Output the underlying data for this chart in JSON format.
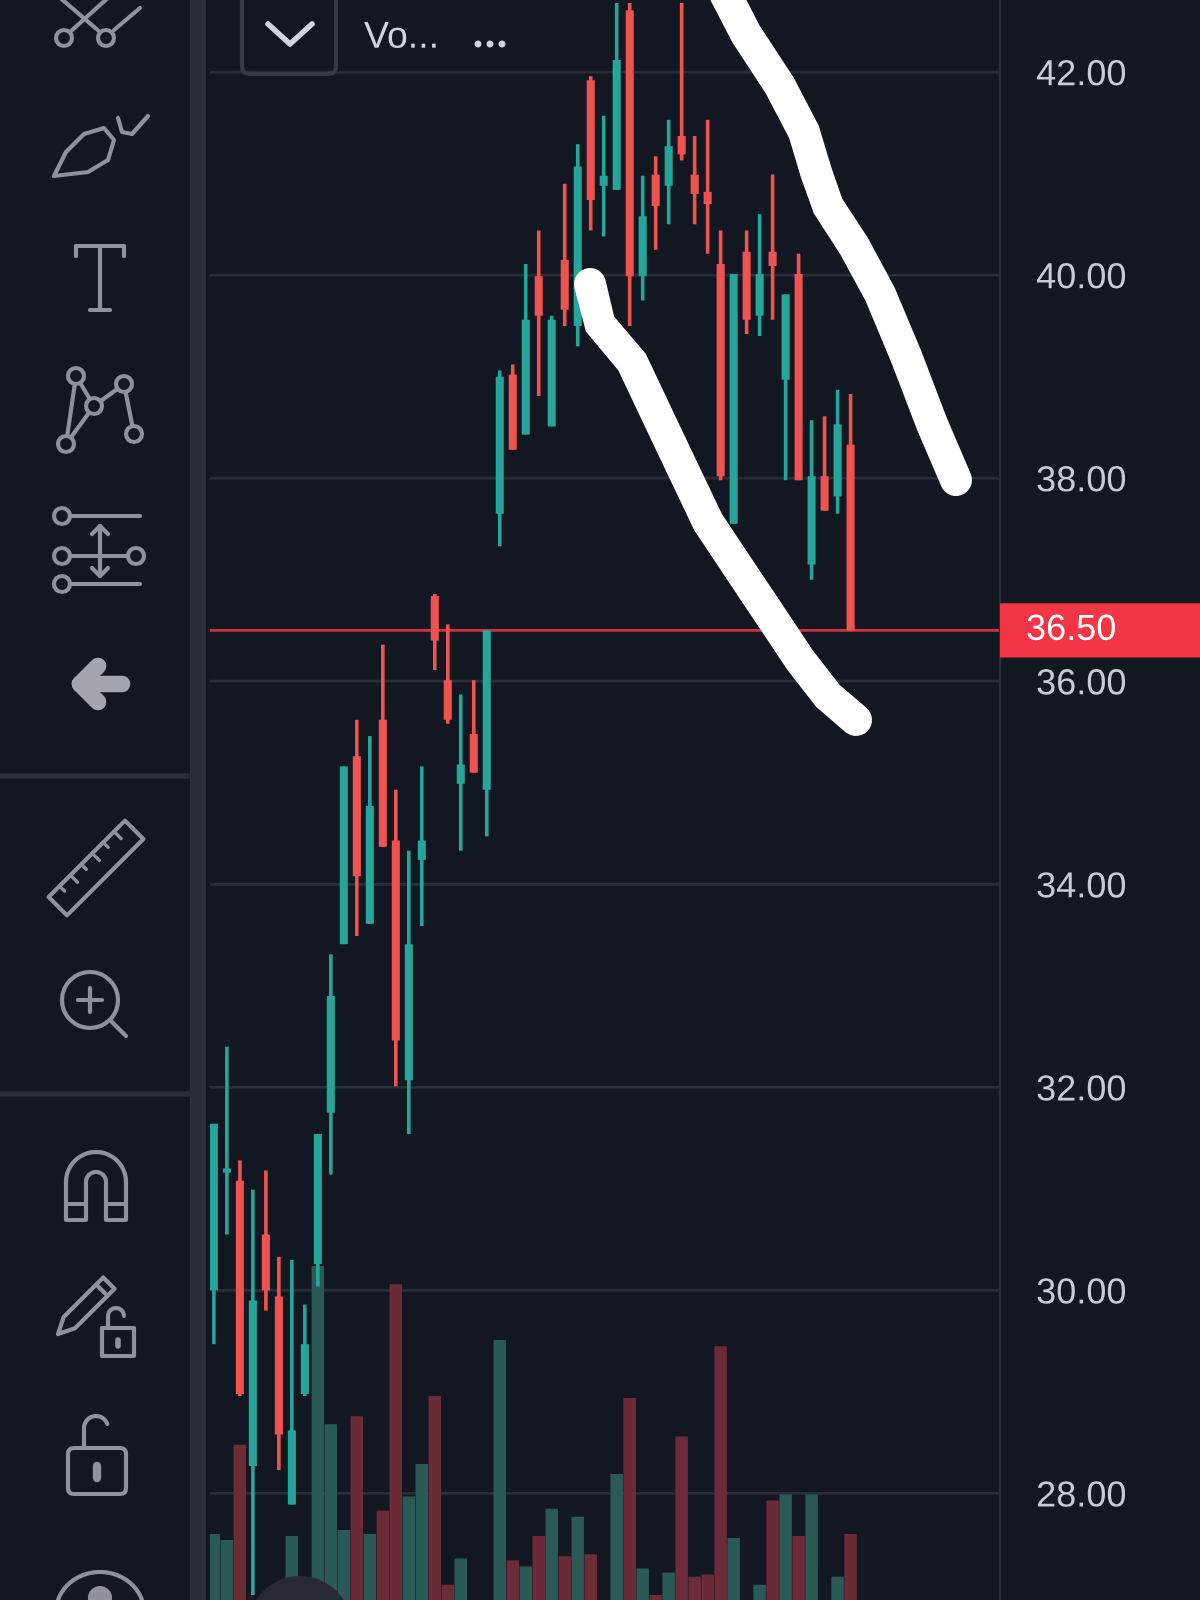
{
  "chart_data": {
    "type": "candlestick",
    "categories": [
      null,
      null,
      null,
      null,
      null,
      null,
      null,
      null,
      null,
      null,
      null,
      null,
      null,
      null,
      null,
      null,
      null,
      null,
      null,
      null,
      null,
      null,
      null,
      null,
      null,
      null,
      null,
      null,
      null,
      null,
      null,
      null,
      null,
      null,
      null,
      null,
      null,
      null,
      null,
      null,
      null,
      null,
      null,
      null,
      null,
      null,
      null,
      null,
      null,
      null
    ],
    "ylim": [
      26.95,
      42.71
    ],
    "yticks": [
      {
        "value": 28,
        "label": "28.00"
      },
      {
        "value": 30,
        "label": "30.00"
      },
      {
        "value": 32,
        "label": "32.00"
      },
      {
        "value": 34,
        "label": "34.00"
      },
      {
        "value": 36,
        "label": "36.00"
      },
      {
        "value": 38,
        "label": "38.00"
      },
      {
        "value": 40,
        "label": "40.00"
      },
      {
        "value": 42,
        "label": "42.00"
      }
    ],
    "grid": "y",
    "tick_labels": "y",
    "series": [
      {
        "type": "bar",
        "values": [
          27.6,
          27.54,
          28.48,
          null,
          null,
          null,
          27.58,
          null,
          30.24,
          28.68,
          27.64,
          28.76,
          27.6,
          27.83,
          30.06,
          27.97,
          28.29,
          28.96,
          27.1,
          27.36,
          null,
          null,
          29.51,
          27.34,
          27.28,
          27.58,
          27.85,
          27.38,
          27.77,
          27.4,
          null,
          28.19,
          28.94,
          27.26,
          27.0,
          27.22,
          28.56,
          27.18,
          27.2,
          29.45,
          27.56,
          null,
          27.1,
          27.93,
          27.99,
          27.58,
          27.99,
          null,
          27.18,
          27.6
        ],
        "colors": [
          "#2a5a55",
          "#2a5a55",
          "#6b2c37",
          "#2a5a55",
          "#6b2c37",
          "#6b2c37",
          "#2a5a55",
          "#2a5a55",
          "#2a5a55",
          "#2a5a55",
          "#2a5a55",
          "#6b2c37",
          "#2a5a55",
          "#6b2c37",
          "#6b2c37",
          "#2a5a55",
          "#2a5a55",
          "#6b2c37",
          "#6b2c37",
          "#2a5a55",
          "#6b2c37",
          "#2a5a55",
          "#2a5a55",
          "#6b2c37",
          "#2a5a55",
          "#6b2c37",
          "#2a5a55",
          "#6b2c37",
          "#2a5a55",
          "#6b2c37",
          "#2a5a55",
          "#2a5a55",
          "#6b2c37",
          "#2a5a55",
          "#6b2c37",
          "#2a5a55",
          "#6b2c37",
          "#6b2c37",
          "#6b2c37",
          "#6b2c37",
          "#2a5a55",
          "#6b2c37",
          "#2a5a55",
          "#6b2c37",
          "#2a5a55",
          "#6b2c37",
          "#2a5a55",
          "#6b2c37",
          "#2a5a55",
          "#6b2c37"
        ]
      },
      {
        "type": "candlestick",
        "ohlc": [
          [
            30.0,
            31.64,
            29.47,
            31.64
          ],
          [
            31.16,
            32.4,
            30.55,
            31.2
          ],
          [
            31.08,
            31.28,
            28.96,
            28.98
          ],
          [
            28.27,
            30.99,
            27.0,
            29.9
          ],
          [
            30.55,
            31.18,
            29.8,
            30.0
          ],
          [
            29.94,
            30.33,
            28.23,
            28.58
          ],
          [
            27.89,
            30.3,
            27.89,
            28.62
          ],
          [
            28.98,
            29.86,
            28.96,
            29.47
          ],
          [
            30.26,
            31.54,
            30.04,
            31.54
          ],
          [
            31.75,
            33.31,
            31.14,
            32.9
          ],
          [
            33.41,
            35.16,
            33.41,
            35.16
          ],
          [
            35.26,
            35.62,
            33.49,
            34.08
          ],
          [
            33.61,
            35.46,
            33.61,
            34.77
          ],
          [
            35.62,
            36.36,
            34.37,
            34.37
          ],
          [
            34.43,
            34.93,
            32.01,
            32.46
          ],
          [
            32.07,
            34.33,
            31.54,
            33.41
          ],
          [
            34.24,
            35.16,
            33.59,
            34.43
          ],
          [
            36.84,
            36.86,
            36.11,
            36.4
          ],
          [
            36.01,
            36.56,
            35.58,
            35.62
          ],
          [
            34.99,
            35.87,
            34.33,
            35.18
          ],
          [
            35.48,
            36.01,
            35.1,
            35.1
          ],
          [
            34.93,
            36.5,
            34.47,
            36.5
          ],
          [
            37.65,
            39.06,
            37.33,
            39.0
          ],
          [
            39.02,
            39.12,
            38.28,
            38.28
          ],
          [
            38.43,
            40.11,
            38.43,
            39.56
          ],
          [
            39.99,
            40.44,
            38.81,
            39.6
          ],
          [
            38.51,
            39.6,
            38.51,
            39.56
          ],
          [
            40.15,
            40.9,
            39.5,
            39.66
          ],
          [
            39.5,
            41.29,
            39.3,
            41.07
          ],
          [
            41.92,
            41.96,
            40.44,
            40.74
          ],
          [
            40.88,
            41.57,
            40.38,
            40.98
          ],
          [
            40.84,
            42.68,
            40.84,
            42.12
          ],
          [
            42.61,
            42.68,
            39.5,
            39.99
          ],
          [
            39.99,
            40.98,
            39.75,
            40.58
          ],
          [
            40.99,
            41.17,
            40.25,
            40.68
          ],
          [
            40.88,
            41.53,
            40.5,
            41.27
          ],
          [
            41.37,
            42.68,
            41.13,
            41.19
          ],
          [
            40.99,
            41.37,
            40.5,
            40.8
          ],
          [
            40.82,
            41.53,
            40.21,
            40.7
          ],
          [
            40.11,
            40.44,
            37.98,
            38.02
          ],
          [
            37.55,
            40.01,
            37.55,
            40.01
          ],
          [
            40.23,
            40.44,
            39.42,
            39.56
          ],
          [
            39.6,
            40.6,
            39.4,
            40.01
          ],
          [
            40.23,
            40.99,
            39.56,
            40.09
          ],
          [
            38.97,
            39.81,
            37.98,
            39.81
          ],
          [
            40.01,
            40.21,
            37.98,
            37.98
          ],
          [
            37.15,
            38.57,
            37.0,
            38.02
          ],
          [
            38.02,
            38.61,
            37.68,
            37.68
          ],
          [
            37.82,
            38.87,
            37.65,
            38.53
          ],
          [
            38.33,
            38.83,
            36.5,
            36.5
          ]
        ],
        "colors": [
          "#26a69a",
          "#26a69a",
          "#ef5350",
          "#26a69a",
          "#ef5350",
          "#ef5350",
          "#26a69a",
          "#26a69a",
          "#26a69a",
          "#26a69a",
          "#26a69a",
          "#ef5350",
          "#26a69a",
          "#ef5350",
          "#ef5350",
          "#26a69a",
          "#26a69a",
          "#ef5350",
          "#ef5350",
          "#26a69a",
          "#ef5350",
          "#26a69a",
          "#26a69a",
          "#ef5350",
          "#26a69a",
          "#ef5350",
          "#26a69a",
          "#ef5350",
          "#26a69a",
          "#ef5350",
          "#26a69a",
          "#26a69a",
          "#ef5350",
          "#26a69a",
          "#ef5350",
          "#26a69a",
          "#ef5350",
          "#ef5350",
          "#ef5350",
          "#ef5350",
          "#26a69a",
          "#ef5350",
          "#26a69a",
          "#ef5350",
          "#26a69a",
          "#ef5350",
          "#26a69a",
          "#ef5350",
          "#26a69a",
          "#ef5350"
        ]
      }
    ],
    "ref_lines": [
      {
        "axis": "y",
        "value": 36.5,
        "label": "36.50",
        "color": "#f23645",
        "line_style": "solid"
      }
    ],
    "annotations": [
      "Vo..."
    ]
  }
}
